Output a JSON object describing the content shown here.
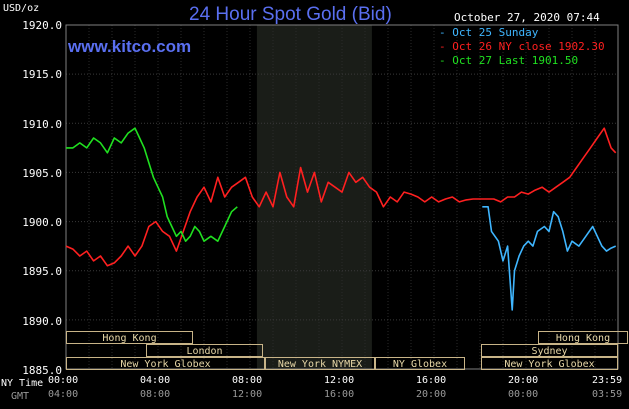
{
  "header": {
    "title": "24 Hour Spot Gold (Bid)",
    "site": "www.kitco.com",
    "unit": "USD/oz",
    "datetime": "October 27, 2020 07:44"
  },
  "legend": [
    {
      "label": "Oct 25 Sunday",
      "color": "#3fb6ff"
    },
    {
      "label": "Oct 26 NY close 1902.30",
      "color": "#ff2020"
    },
    {
      "label": "Oct 27 Last 1901.50",
      "color": "#20e020"
    }
  ],
  "sessions_bar": {
    "row1": [
      {
        "label": "Hong Kong"
      },
      {
        "label": "Hong Kong"
      }
    ],
    "row2": [
      {
        "label": "London"
      },
      {
        "label": "Sydney"
      }
    ],
    "row3": [
      {
        "label": "New York Globex"
      },
      {
        "label": "New York NYMEX"
      },
      {
        "label": "NY Globex"
      },
      {
        "label": "New York Globex"
      }
    ]
  },
  "time_axis": {
    "ny_label": "NY Time",
    "gmt_label": "GMT",
    "ny_ticks": [
      "00:00",
      "04:00",
      "08:00",
      "12:00",
      "16:00",
      "20:00",
      "23:59"
    ],
    "gmt_ticks": [
      "04:00",
      "08:00",
      "12:00",
      "16:00",
      "20:00",
      "00:00",
      "03:59"
    ]
  },
  "chart_data": {
    "type": "line",
    "title": "24 Hour Spot Gold (Bid)",
    "ylabel": "USD/oz",
    "xlabel": "NY Time",
    "ylim": [
      1885.0,
      1920.0
    ],
    "yticks": [
      1920.0,
      1915.0,
      1910.0,
      1905.0,
      1900.0,
      1895.0,
      1890.0,
      1885.0
    ],
    "ytick_labels": [
      "1920.0",
      "1915.0",
      "1910.0",
      "1905.0",
      "1900.0",
      "1895.0",
      "1890.0",
      "1885.0"
    ],
    "x_unit": "NY time (hours)",
    "xlim": [
      0,
      24
    ],
    "highlight_hours": [
      8.3,
      13.3
    ],
    "ny_close": 1902.3,
    "series": [
      {
        "name": "Oct 25 Sunday",
        "color": "#3fb6ff",
        "x": [
          18.1,
          18.35,
          18.5,
          18.8,
          19.0,
          19.2,
          19.4,
          19.5,
          19.7,
          19.9,
          20.1,
          20.3,
          20.5,
          20.8,
          21.0,
          21.2,
          21.4,
          21.6,
          21.8,
          22.0,
          22.3,
          22.6,
          22.9,
          23.1,
          23.3,
          23.5,
          23.7,
          23.9
        ],
        "y": [
          1901.5,
          1901.5,
          1899.0,
          1898.0,
          1896.0,
          1897.5,
          1891.0,
          1895.0,
          1896.5,
          1897.5,
          1898.0,
          1897.5,
          1899.0,
          1899.5,
          1899.0,
          1901.0,
          1900.5,
          1899.0,
          1897.0,
          1898.0,
          1897.5,
          1898.5,
          1899.5,
          1898.5,
          1897.5,
          1897.0,
          1897.3,
          1897.5
        ]
      },
      {
        "name": "Oct 26 NY close 1902.30",
        "color": "#ff2020",
        "x": [
          0.0,
          0.3,
          0.6,
          0.9,
          1.2,
          1.5,
          1.8,
          2.1,
          2.4,
          2.7,
          3.0,
          3.3,
          3.6,
          3.9,
          4.2,
          4.5,
          4.8,
          5.1,
          5.4,
          5.7,
          6.0,
          6.3,
          6.6,
          6.9,
          7.2,
          7.5,
          7.8,
          8.1,
          8.4,
          8.7,
          9.0,
          9.3,
          9.6,
          9.9,
          10.2,
          10.5,
          10.8,
          11.1,
          11.4,
          11.7,
          12.0,
          12.3,
          12.6,
          12.9,
          13.2,
          13.5,
          13.8,
          14.1,
          14.4,
          14.7,
          15.0,
          15.3,
          15.6,
          15.9,
          16.2,
          16.5,
          16.8,
          17.1,
          17.4,
          17.7,
          18.0,
          18.3,
          18.6,
          18.9,
          19.2,
          19.5,
          19.8,
          20.1,
          20.4,
          20.7,
          21.0,
          21.3,
          21.6,
          21.9,
          22.2,
          22.5,
          22.8,
          23.1,
          23.4,
          23.7,
          23.9
        ],
        "y": [
          1897.5,
          1897.2,
          1896.5,
          1897.0,
          1896.0,
          1896.5,
          1895.5,
          1895.8,
          1896.5,
          1897.5,
          1896.5,
          1897.5,
          1899.5,
          1900.0,
          1899.0,
          1898.5,
          1897.0,
          1899.0,
          1901.0,
          1902.5,
          1903.5,
          1902.0,
          1904.5,
          1902.5,
          1903.5,
          1904.0,
          1904.5,
          1902.5,
          1901.5,
          1903.0,
          1901.5,
          1905.0,
          1902.5,
          1901.5,
          1905.5,
          1903.0,
          1905.0,
          1902.0,
          1904.0,
          1903.5,
          1903.0,
          1905.0,
          1904.0,
          1904.5,
          1903.5,
          1903.0,
          1901.5,
          1902.5,
          1902.0,
          1903.0,
          1902.8,
          1902.5,
          1902.0,
          1902.5,
          1902.0,
          1902.3,
          1902.5,
          1902.0,
          1902.2,
          1902.3,
          1902.3,
          1902.3,
          1902.3,
          1902.0,
          1902.5,
          1902.5,
          1903.0,
          1902.8,
          1903.2,
          1903.5,
          1903.0,
          1903.5,
          1904.0,
          1904.5,
          1905.5,
          1906.5,
          1907.5,
          1908.5,
          1909.5,
          1907.5,
          1907.0
        ]
      },
      {
        "name": "Oct 27 Last 1901.50",
        "color": "#20e020",
        "x": [
          0.0,
          0.3,
          0.6,
          0.9,
          1.2,
          1.5,
          1.8,
          2.1,
          2.4,
          2.7,
          3.0,
          3.2,
          3.4,
          3.6,
          3.8,
          4.0,
          4.2,
          4.4,
          4.6,
          4.8,
          5.0,
          5.2,
          5.4,
          5.6,
          5.8,
          6.0,
          6.3,
          6.6,
          6.9,
          7.2,
          7.45
        ],
        "y": [
          1907.5,
          1907.5,
          1908.0,
          1907.5,
          1908.5,
          1908.0,
          1907.0,
          1908.5,
          1908.0,
          1909.0,
          1909.5,
          1908.5,
          1907.5,
          1906.0,
          1904.5,
          1903.5,
          1902.5,
          1900.5,
          1899.5,
          1898.5,
          1899.0,
          1898.0,
          1898.5,
          1899.5,
          1899.0,
          1898.0,
          1898.5,
          1898.0,
          1899.5,
          1901.0,
          1901.5
        ]
      }
    ]
  }
}
